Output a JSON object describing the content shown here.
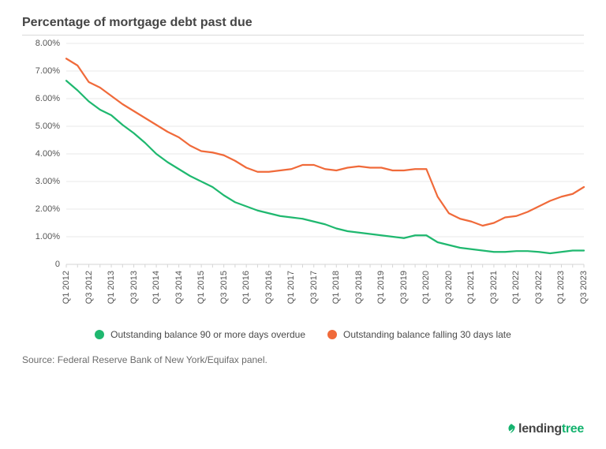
{
  "chart": {
    "type": "line",
    "title": "Percentage of mortgage debt past due",
    "title_fontsize": 16,
    "title_color": "#454545",
    "background_color": "#ffffff",
    "grid_color": "#e8e8e8",
    "axis_line_color": "#d5d5d5",
    "ylim": [
      0,
      8
    ],
    "yticks": [
      0,
      1,
      2,
      3,
      4,
      5,
      6,
      7,
      8
    ],
    "ytick_labels": [
      "0",
      "1.00%",
      "2.00%",
      "3.00%",
      "4.00%",
      "5.00%",
      "6.00%",
      "7.00%",
      "8.00%"
    ],
    "x_categories": [
      "Q1 2012",
      "Q2 2012",
      "Q3 2012",
      "Q4 2012",
      "Q1 2013",
      "Q2 2013",
      "Q3 2013",
      "Q4 2013",
      "Q1 2014",
      "Q2 2014",
      "Q3 2014",
      "Q4 2014",
      "Q1 2015",
      "Q2 2015",
      "Q3 2015",
      "Q4 2015",
      "Q1 2016",
      "Q2 2016",
      "Q3 2016",
      "Q4 2016",
      "Q1 2017",
      "Q2 2017",
      "Q3 2017",
      "Q4 2017",
      "Q1 2018",
      "Q2 2018",
      "Q3 2018",
      "Q4 2018",
      "Q1 2019",
      "Q2 2019",
      "Q3 2019",
      "Q4 2019",
      "Q1 2020",
      "Q2 2020",
      "Q3 2020",
      "Q4 2020",
      "Q1 2021",
      "Q2 2021",
      "Q3 2021",
      "Q4 2021",
      "Q1 2022",
      "Q2 2022",
      "Q3 2022",
      "Q4 2022",
      "Q1 2023",
      "Q2 2023",
      "Q3 2023"
    ],
    "x_tick_labels_shown": [
      "Q1 2012",
      "Q3 2012",
      "Q1 2013",
      "Q3 2013",
      "Q1 2014",
      "Q3 2014",
      "Q1 2015",
      "Q3 2015",
      "Q1 2016",
      "Q3 2016",
      "Q1 2017",
      "Q3 2017",
      "Q1 2018",
      "Q3 2018",
      "Q1 2019",
      "Q3 2019",
      "Q1 2020",
      "Q3 2020",
      "Q1 2021",
      "Q3 2021",
      "Q1 2022",
      "Q3 2022",
      "Q1 2023",
      "Q3 2023"
    ],
    "series": [
      {
        "name": "Outstanding balance 90 or more days overdue",
        "color": "#1fb86f",
        "line_width": 2.2,
        "values": [
          6.65,
          6.3,
          5.9,
          5.6,
          5.4,
          5.05,
          4.75,
          4.4,
          4.0,
          3.7,
          3.45,
          3.2,
          3.0,
          2.8,
          2.5,
          2.25,
          2.1,
          1.95,
          1.85,
          1.75,
          1.7,
          1.65,
          1.55,
          1.45,
          1.3,
          1.2,
          1.15,
          1.1,
          1.05,
          1.0,
          0.95,
          1.05,
          1.05,
          0.8,
          0.7,
          0.6,
          0.55,
          0.5,
          0.45,
          0.45,
          0.48,
          0.48,
          0.45,
          0.4,
          0.45,
          0.5,
          0.5
        ]
      },
      {
        "name": "Outstanding balance falling 30 days late",
        "color": "#f06a3a",
        "line_width": 2.2,
        "values": [
          7.45,
          7.2,
          6.6,
          6.4,
          6.1,
          5.8,
          5.55,
          5.3,
          5.05,
          4.8,
          4.6,
          4.3,
          4.1,
          4.05,
          3.95,
          3.75,
          3.5,
          3.35,
          3.35,
          3.4,
          3.45,
          3.6,
          3.6,
          3.45,
          3.4,
          3.5,
          3.55,
          3.5,
          3.5,
          3.4,
          3.4,
          3.45,
          3.45,
          2.45,
          1.85,
          1.65,
          1.55,
          1.4,
          1.5,
          1.7,
          1.75,
          1.9,
          2.1,
          2.3,
          2.45,
          2.55,
          2.8
        ]
      }
    ],
    "legend_position": "bottom",
    "tick_fontsize": 11,
    "tick_color": "#555555"
  },
  "source_text": "Source: Federal Reserve Bank of New York/Equifax panel.",
  "logo": {
    "word1": "lending",
    "word2": "tree",
    "word2_color": "#15b36f",
    "leaf_color": "#15b36f",
    "text_color": "#454545"
  }
}
